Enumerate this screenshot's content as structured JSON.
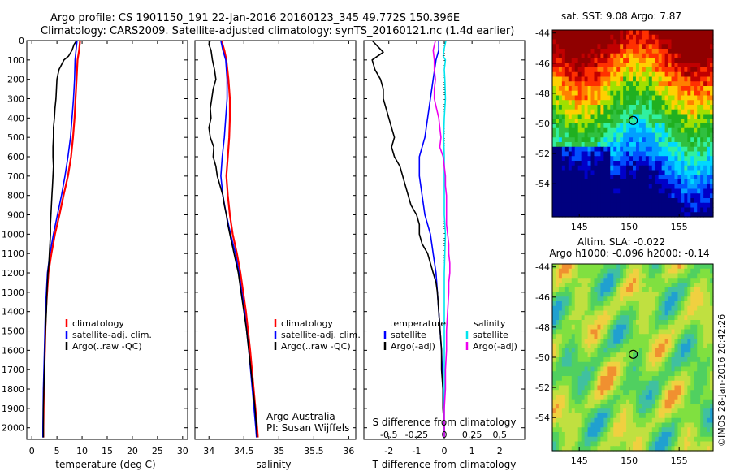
{
  "header": {
    "line1": "Argo profile: CS 1901150_191 22-Jan-2016 20160123_345 49.772S 150.396E",
    "line2": "Climatology: CARS2009. Satellite-adjusted climatology: synTS_20160121.nc (1.4d earlier)"
  },
  "credits": {
    "program": "Argo Australia",
    "pi": "PI: Susan Wijffels",
    "imos": "©IMOS 28-Jan-2016 20:42:26"
  },
  "colors": {
    "climatology": "#ff0000",
    "satellite": "#0000ff",
    "argo": "#000000",
    "salinity_sat": "#00e5ee",
    "salinity_argo": "#ee00ee"
  },
  "depth_ticks": [
    0,
    100,
    200,
    300,
    400,
    500,
    600,
    700,
    800,
    900,
    1000,
    1100,
    1200,
    1300,
    1400,
    1500,
    1600,
    1700,
    1800,
    1900,
    2000
  ],
  "chart_data": [
    {
      "type": "line",
      "id": "temperature",
      "xlabel": "temperature (deg C)",
      "ylabel": "",
      "xlim": [
        -1,
        31
      ],
      "ylim": [
        2060,
        0
      ],
      "xticks": [
        0,
        5,
        10,
        15,
        20,
        25,
        30
      ],
      "legend": {
        "placement": "middle",
        "entries": [
          "climatology",
          "satellite-adj. clim.",
          "Argo(..raw -QC)"
        ]
      },
      "series": [
        {
          "name": "climatology",
          "depth": [
            0,
            50,
            100,
            200,
            300,
            400,
            500,
            600,
            700,
            800,
            900,
            1000,
            1100,
            1200,
            1400,
            1600,
            1800,
            2000,
            2050
          ],
          "values": [
            9.6,
            9.4,
            9.1,
            8.9,
            8.7,
            8.5,
            8.2,
            7.8,
            7.2,
            6.3,
            5.5,
            4.6,
            3.9,
            3.3,
            2.8,
            2.6,
            2.4,
            2.3,
            2.3
          ]
        },
        {
          "name": "satellite-adj. clim.",
          "depth": [
            0,
            50,
            100,
            200,
            300,
            400,
            500,
            600,
            700,
            800,
            900,
            1000,
            1100,
            1200,
            1400,
            1600,
            1800,
            2000,
            2050
          ],
          "values": [
            9.0,
            8.8,
            8.6,
            8.5,
            8.3,
            8.0,
            7.7,
            7.2,
            6.6,
            5.9,
            5.1,
            4.3,
            3.6,
            3.1,
            2.7,
            2.5,
            2.3,
            2.2,
            2.2
          ]
        },
        {
          "name": "Argo(..raw -QC)",
          "depth": [
            0,
            20,
            50,
            80,
            100,
            150,
            200,
            250,
            300,
            350,
            400,
            450,
            500,
            550,
            600,
            650,
            700,
            750,
            800,
            850,
            900,
            950,
            1000,
            1050,
            1100,
            1150,
            1200,
            1300,
            1400,
            1500,
            1600,
            1700,
            1800,
            1900,
            2000,
            2050
          ],
          "values": [
            8.9,
            8.4,
            8.0,
            7.3,
            6.4,
            5.4,
            5.0,
            4.9,
            4.8,
            4.6,
            4.5,
            4.3,
            4.3,
            4.2,
            4.2,
            4.3,
            4.2,
            4.1,
            4.0,
            3.9,
            3.8,
            3.7,
            3.7,
            3.6,
            3.5,
            3.4,
            3.2,
            3.0,
            2.9,
            2.7,
            2.6,
            2.5,
            2.4,
            2.3,
            2.3,
            2.3
          ]
        }
      ]
    },
    {
      "type": "line",
      "id": "salinity",
      "xlabel": "salinity",
      "ylabel": "",
      "xlim": [
        33.8,
        36.1
      ],
      "ylim": [
        2060,
        0
      ],
      "xticks": [
        34,
        34.5,
        35,
        35.5,
        36
      ],
      "legend": {
        "placement": "middle",
        "entries": [
          "climatology",
          "satellite-adj. clim.",
          "Argo(..raw -QC)"
        ]
      },
      "series": [
        {
          "name": "climatology",
          "depth": [
            0,
            50,
            100,
            200,
            300,
            400,
            500,
            600,
            700,
            800,
            900,
            1000,
            1100,
            1200,
            1400,
            1600,
            1800,
            2000,
            2050
          ],
          "values": [
            34.18,
            34.22,
            34.25,
            34.28,
            34.3,
            34.3,
            34.29,
            34.27,
            34.25,
            34.27,
            34.3,
            34.34,
            34.4,
            34.45,
            34.53,
            34.59,
            34.64,
            34.69,
            34.7
          ]
        },
        {
          "name": "satellite-adj. clim.",
          "depth": [
            0,
            50,
            100,
            200,
            300,
            400,
            500,
            600,
            700,
            800,
            900,
            1000,
            1100,
            1200,
            1400,
            1600,
            1800,
            2000,
            2050
          ],
          "values": [
            34.17,
            34.2,
            34.24,
            34.26,
            34.26,
            34.24,
            34.22,
            34.19,
            34.17,
            34.2,
            34.25,
            34.31,
            34.38,
            34.43,
            34.51,
            34.57,
            34.62,
            34.67,
            34.68
          ]
        },
        {
          "name": "Argo(..raw -QC)",
          "depth": [
            0,
            20,
            50,
            100,
            150,
            200,
            250,
            300,
            350,
            400,
            450,
            500,
            550,
            600,
            650,
            700,
            750,
            800,
            850,
            900,
            950,
            1000,
            1100,
            1200,
            1300,
            1400,
            1500,
            1600,
            1700,
            1800,
            1900,
            2000,
            2050
          ],
          "values": [
            34.02,
            34.0,
            34.03,
            34.05,
            34.08,
            34.1,
            34.06,
            34.04,
            34.02,
            34.03,
            34.0,
            34.02,
            34.07,
            34.06,
            34.1,
            34.12,
            34.16,
            34.2,
            34.22,
            34.25,
            34.27,
            34.3,
            34.36,
            34.42,
            34.46,
            34.5,
            34.54,
            34.57,
            34.6,
            34.63,
            34.66,
            34.68,
            34.69
          ]
        }
      ]
    },
    {
      "type": "line",
      "id": "differences",
      "xlabel": "T difference from climatology",
      "x2label": "S difference from climatology",
      "ylabel": "",
      "xlim": [
        -2.9,
        2.9
      ],
      "ylim": [
        2060,
        0
      ],
      "xticks": [
        -2,
        -1,
        0,
        1,
        2
      ],
      "x2ticks": [
        -0.5,
        -0.25,
        0,
        0.25,
        0.5
      ],
      "x2tick_labels": [
        "-0.5",
        "-0.25",
        "0",
        "0.25",
        "0.5"
      ],
      "legend": {
        "placement": "middle",
        "groups": [
          "temperature",
          "salinity"
        ],
        "entries": [
          "satellite",
          "Argo(-adj)",
          "satellite",
          "Argo(-adj)"
        ]
      },
      "series": [
        {
          "name": "temperature satellite",
          "depth": [
            0,
            50,
            100,
            200,
            300,
            400,
            500,
            600,
            700,
            800,
            900,
            1000,
            1100,
            1200,
            1400,
            1600,
            1800,
            2000,
            2050
          ],
          "values": [
            -0.2,
            -0.2,
            -0.3,
            -0.4,
            -0.5,
            -0.6,
            -0.7,
            -0.9,
            -0.9,
            -0.8,
            -0.7,
            -0.5,
            -0.4,
            -0.3,
            -0.2,
            -0.1,
            -0.05,
            0.0,
            0.0
          ]
        },
        {
          "name": "temperature Argo(-adj)",
          "depth": [
            0,
            30,
            60,
            100,
            150,
            200,
            250,
            300,
            350,
            400,
            450,
            500,
            550,
            600,
            650,
            700,
            750,
            800,
            850,
            900,
            950,
            1000,
            1050,
            1100,
            1150,
            1200,
            1250,
            1300,
            1400,
            1500,
            1600,
            1700,
            1800,
            1900,
            2000,
            2050
          ],
          "values": [
            -2.6,
            -2.4,
            -2.2,
            -2.6,
            -2.5,
            -2.3,
            -2.2,
            -2.2,
            -2.1,
            -2.0,
            -1.9,
            -1.8,
            -1.9,
            -1.8,
            -1.6,
            -1.5,
            -1.4,
            -1.3,
            -1.2,
            -1.0,
            -0.9,
            -0.9,
            -0.8,
            -0.6,
            -0.5,
            -0.4,
            -0.3,
            -0.25,
            -0.2,
            -0.15,
            -0.1,
            -0.1,
            -0.05,
            -0.05,
            0.0,
            0.0
          ]
        },
        {
          "name": "salinity satellite",
          "depth": [
            0,
            40,
            80,
            100,
            150,
            200,
            300,
            400,
            500,
            600,
            700,
            800,
            900,
            1000,
            1200,
            1400,
            1600,
            1800,
            2000,
            2050
          ],
          "values": [
            0.015,
            0.0,
            -0.01,
            0.01,
            0.0,
            0.005,
            0.01,
            0.0,
            -0.005,
            0.0,
            0.0,
            0.0,
            0.0,
            0.01,
            0.0,
            0.0,
            0.0,
            0.0,
            0.0,
            0.0
          ]
        },
        {
          "name": "salinity Argo(-adj)",
          "depth": [
            0,
            50,
            100,
            150,
            200,
            250,
            300,
            350,
            400,
            450,
            500,
            550,
            600,
            650,
            700,
            750,
            800,
            850,
            900,
            950,
            1000,
            1050,
            1100,
            1150,
            1200,
            1250,
            1300,
            1400,
            1500,
            1600,
            1700,
            1800,
            1900,
            2000,
            2050
          ],
          "values": [
            -0.08,
            -0.1,
            -0.09,
            -0.09,
            -0.08,
            -0.09,
            -0.09,
            -0.07,
            -0.05,
            -0.04,
            -0.03,
            -0.04,
            -0.01,
            0.0,
            0.01,
            0.01,
            0.02,
            0.02,
            0.02,
            0.02,
            0.03,
            0.04,
            0.04,
            0.05,
            0.05,
            0.04,
            0.04,
            0.03,
            0.02,
            0.02,
            0.01,
            0.01,
            0.0,
            0.0,
            0.0
          ]
        }
      ]
    },
    {
      "type": "heatmap",
      "id": "sst_map",
      "title": "sat. SST: 9.08 Argo: 7.87",
      "xlim": [
        142.3,
        158.4
      ],
      "ylim": [
        -56.2,
        -43.8
      ],
      "xticks": [
        145,
        150,
        155
      ],
      "yticks": [
        -44,
        -46,
        -48,
        -50,
        -52,
        -54
      ],
      "ytick_labels": [
        "-44",
        "-46",
        "-48",
        "-50",
        "-52",
        "-54"
      ],
      "argo_position": {
        "lon": 150.4,
        "lat": -49.8
      }
    },
    {
      "type": "heatmap",
      "id": "sla_map",
      "title": "Altim. SLA: -0.022",
      "subtitle": "Argo h1000: -0.096 h2000: -0.14",
      "xlim": [
        142.3,
        158.4
      ],
      "ylim": [
        -56.2,
        -43.8
      ],
      "xticks": [
        145,
        150,
        155
      ],
      "yticks": [
        -44,
        -46,
        -48,
        -50,
        -52,
        -54
      ],
      "ytick_labels": [
        "-44",
        "-46",
        "-48",
        "-50",
        "-52",
        "-54"
      ],
      "argo_position": {
        "lon": 150.4,
        "lat": -49.8
      }
    }
  ]
}
